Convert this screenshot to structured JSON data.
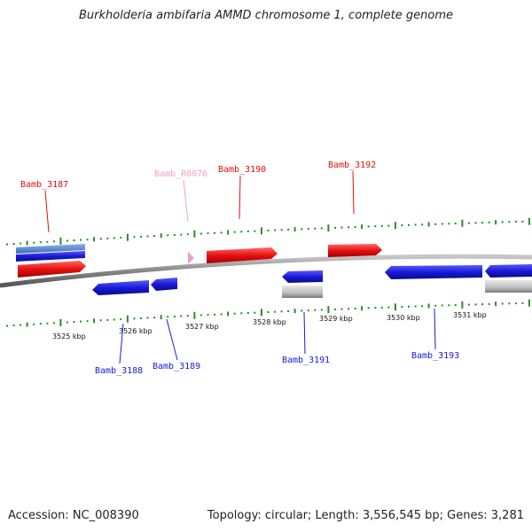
{
  "title": "Burkholderia ambifaria AMMD chromosome 1, complete genome",
  "footer": {
    "accession": "Accession: NC_008390",
    "summary": "Topology: circular; Length: 3,556,545 bp; Genes: 3,281"
  },
  "colors": {
    "forward_gene": "#e01010",
    "reverse_gene": "#1a1ad8",
    "rna_gene": "#f0a0c8",
    "other_feature": "#bcbcbc",
    "tick": "#2a8a2a",
    "backbone": "#888888"
  },
  "kbp_labels": [
    "3525 kbp",
    "3526 kbp",
    "3527 kbp",
    "3528 kbp",
    "3529 kbp",
    "3530 kbp",
    "3531 kbp"
  ],
  "gene_labels": [
    {
      "name": "Bamb_3187",
      "strand": "forward"
    },
    {
      "name": "Bamb_R0076",
      "strand": "rna"
    },
    {
      "name": "Bamb_3190",
      "strand": "forward"
    },
    {
      "name": "Bamb_3192",
      "strand": "forward"
    },
    {
      "name": "Bamb_3188",
      "strand": "reverse"
    },
    {
      "name": "Bamb_3189",
      "strand": "reverse"
    },
    {
      "name": "Bamb_3191",
      "strand": "reverse"
    },
    {
      "name": "Bamb_3193",
      "strand": "reverse"
    }
  ]
}
